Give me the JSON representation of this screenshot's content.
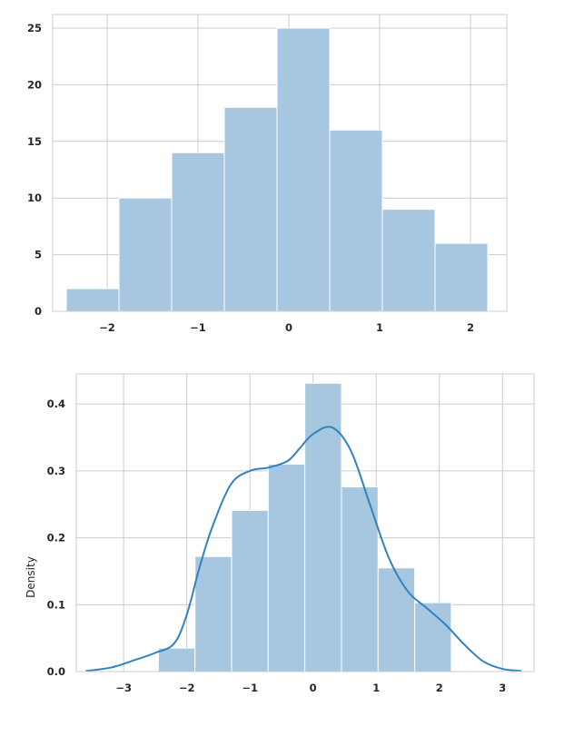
{
  "chart_data": [
    {
      "type": "bar",
      "subtype": "histogram",
      "xlabel": "",
      "ylabel": "",
      "xlim": [
        -2.6,
        2.4
      ],
      "ylim": [
        0,
        26.2
      ],
      "bin_edges": [
        -2.45,
        -1.87,
        -1.29,
        -0.71,
        -0.13,
        0.45,
        1.03,
        1.61,
        2.19
      ],
      "values": [
        2,
        10,
        14,
        18,
        25,
        16,
        9,
        6
      ],
      "xticks": [
        -2,
        -1,
        0,
        1,
        2
      ],
      "xtick_labels": [
        "−2",
        "−1",
        "0",
        "1",
        "2"
      ],
      "yticks": [
        0,
        5,
        10,
        15,
        20,
        25
      ],
      "ytick_labels": [
        "0",
        "5",
        "10",
        "15",
        "20",
        "25"
      ],
      "grid": true,
      "bar_color": "#a7c7e0",
      "grid_color": "#cccccc"
    },
    {
      "type": "bar",
      "subtype": "histogram-with-kde",
      "xlabel": "",
      "ylabel": "Density",
      "xlim": [
        -3.75,
        3.5
      ],
      "ylim": [
        0,
        0.445
      ],
      "bin_edges": [
        -2.45,
        -1.87,
        -1.29,
        -0.71,
        -0.13,
        0.45,
        1.03,
        1.61,
        2.19
      ],
      "values": [
        0.035,
        0.172,
        0.241,
        0.31,
        0.431,
        0.276,
        0.155,
        0.103
      ],
      "kde": {
        "x": [
          -3.6,
          -3.2,
          -2.8,
          -2.5,
          -2.2,
          -2.0,
          -1.8,
          -1.6,
          -1.3,
          -1.0,
          -0.7,
          -0.4,
          -0.2,
          0.0,
          0.3,
          0.6,
          0.9,
          1.2,
          1.5,
          1.8,
          2.1,
          2.4,
          2.7,
          3.0,
          3.3
        ],
        "y": [
          0.001,
          0.006,
          0.018,
          0.028,
          0.042,
          0.085,
          0.155,
          0.215,
          0.28,
          0.3,
          0.305,
          0.315,
          0.335,
          0.355,
          0.365,
          0.33,
          0.25,
          0.17,
          0.12,
          0.095,
          0.07,
          0.04,
          0.015,
          0.004,
          0.001
        ]
      },
      "xticks": [
        -3,
        -2,
        -1,
        0,
        1,
        2,
        3
      ],
      "xtick_labels": [
        "−3",
        "−2",
        "−1",
        "0",
        "1",
        "2",
        "3"
      ],
      "yticks": [
        0,
        0.1,
        0.2,
        0.3,
        0.4
      ],
      "ytick_labels": [
        "0.0",
        "0.1",
        "0.2",
        "0.3",
        "0.4"
      ],
      "grid": true,
      "bar_color": "#a7c7e0",
      "line_color": "#3182bd",
      "grid_color": "#cccccc"
    }
  ]
}
